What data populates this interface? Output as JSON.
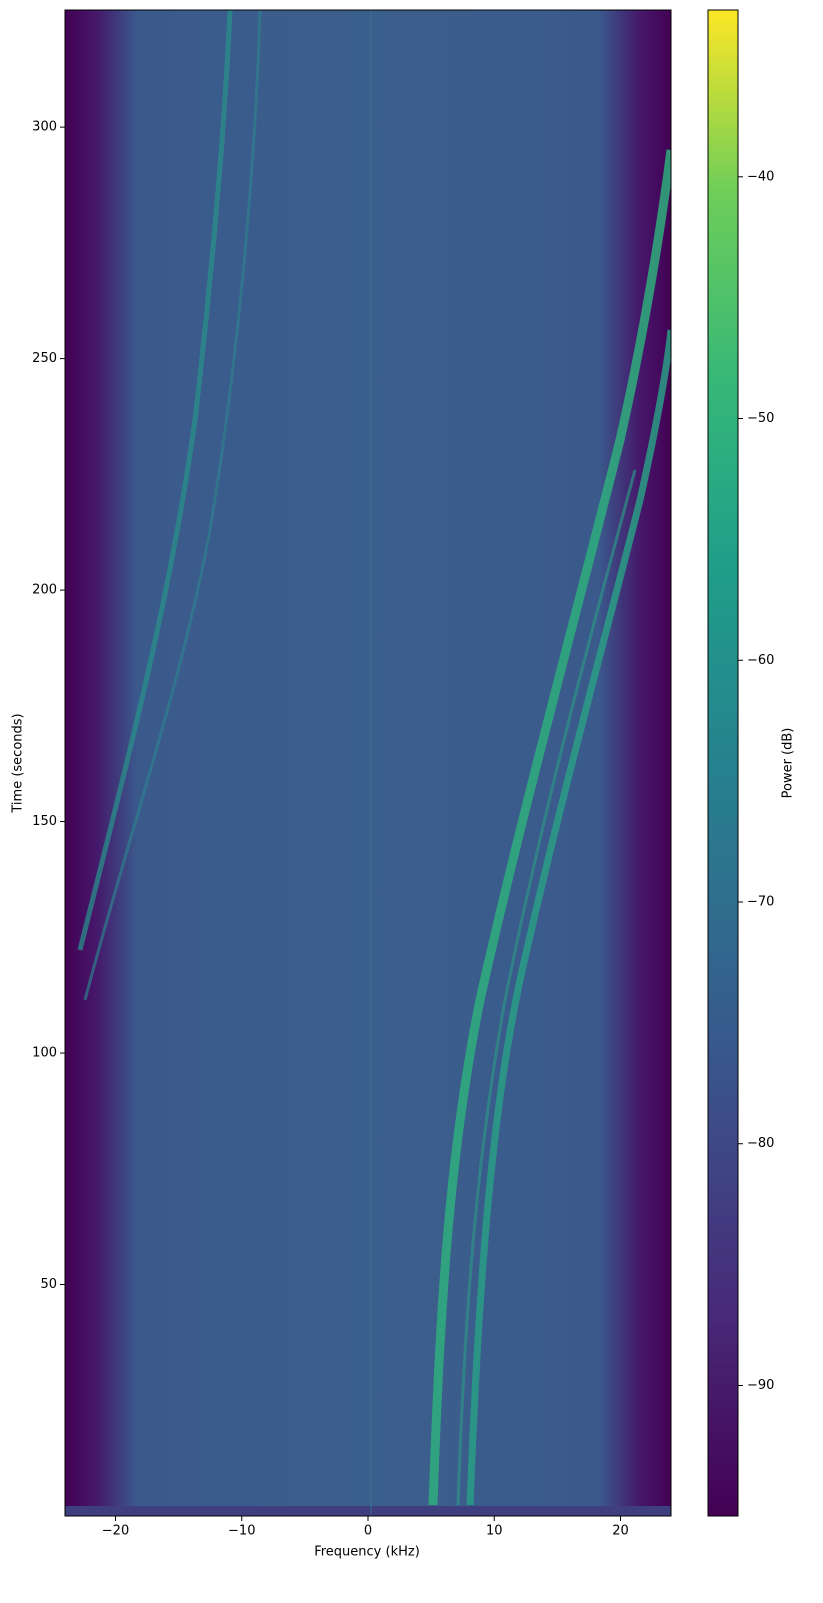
{
  "chart_data": {
    "type": "spectrogram",
    "xlabel": "Frequency (kHz)",
    "ylabel": "Time (seconds)",
    "xlim": [
      -24,
      24
    ],
    "xticks": [
      {
        "value": -20,
        "label": "−20"
      },
      {
        "value": -10,
        "label": "−10"
      },
      0,
      10,
      20
    ],
    "ylim": [
      0,
      325.3
    ],
    "yticks": [
      50,
      100,
      150,
      200,
      250,
      300
    ],
    "colorbar": {
      "label": "Power (dB)",
      "colormap": "viridis",
      "lim": [
        -95.4,
        -33.1
      ],
      "ticks": [
        {
          "value": -40,
          "label": "−40"
        },
        {
          "value": -50,
          "label": "−50"
        },
        {
          "value": -60,
          "label": "−60"
        },
        {
          "value": -70,
          "label": "−70"
        },
        {
          "value": -80,
          "label": "−80"
        },
        {
          "value": -90,
          "label": "−90"
        }
      ]
    }
  }
}
